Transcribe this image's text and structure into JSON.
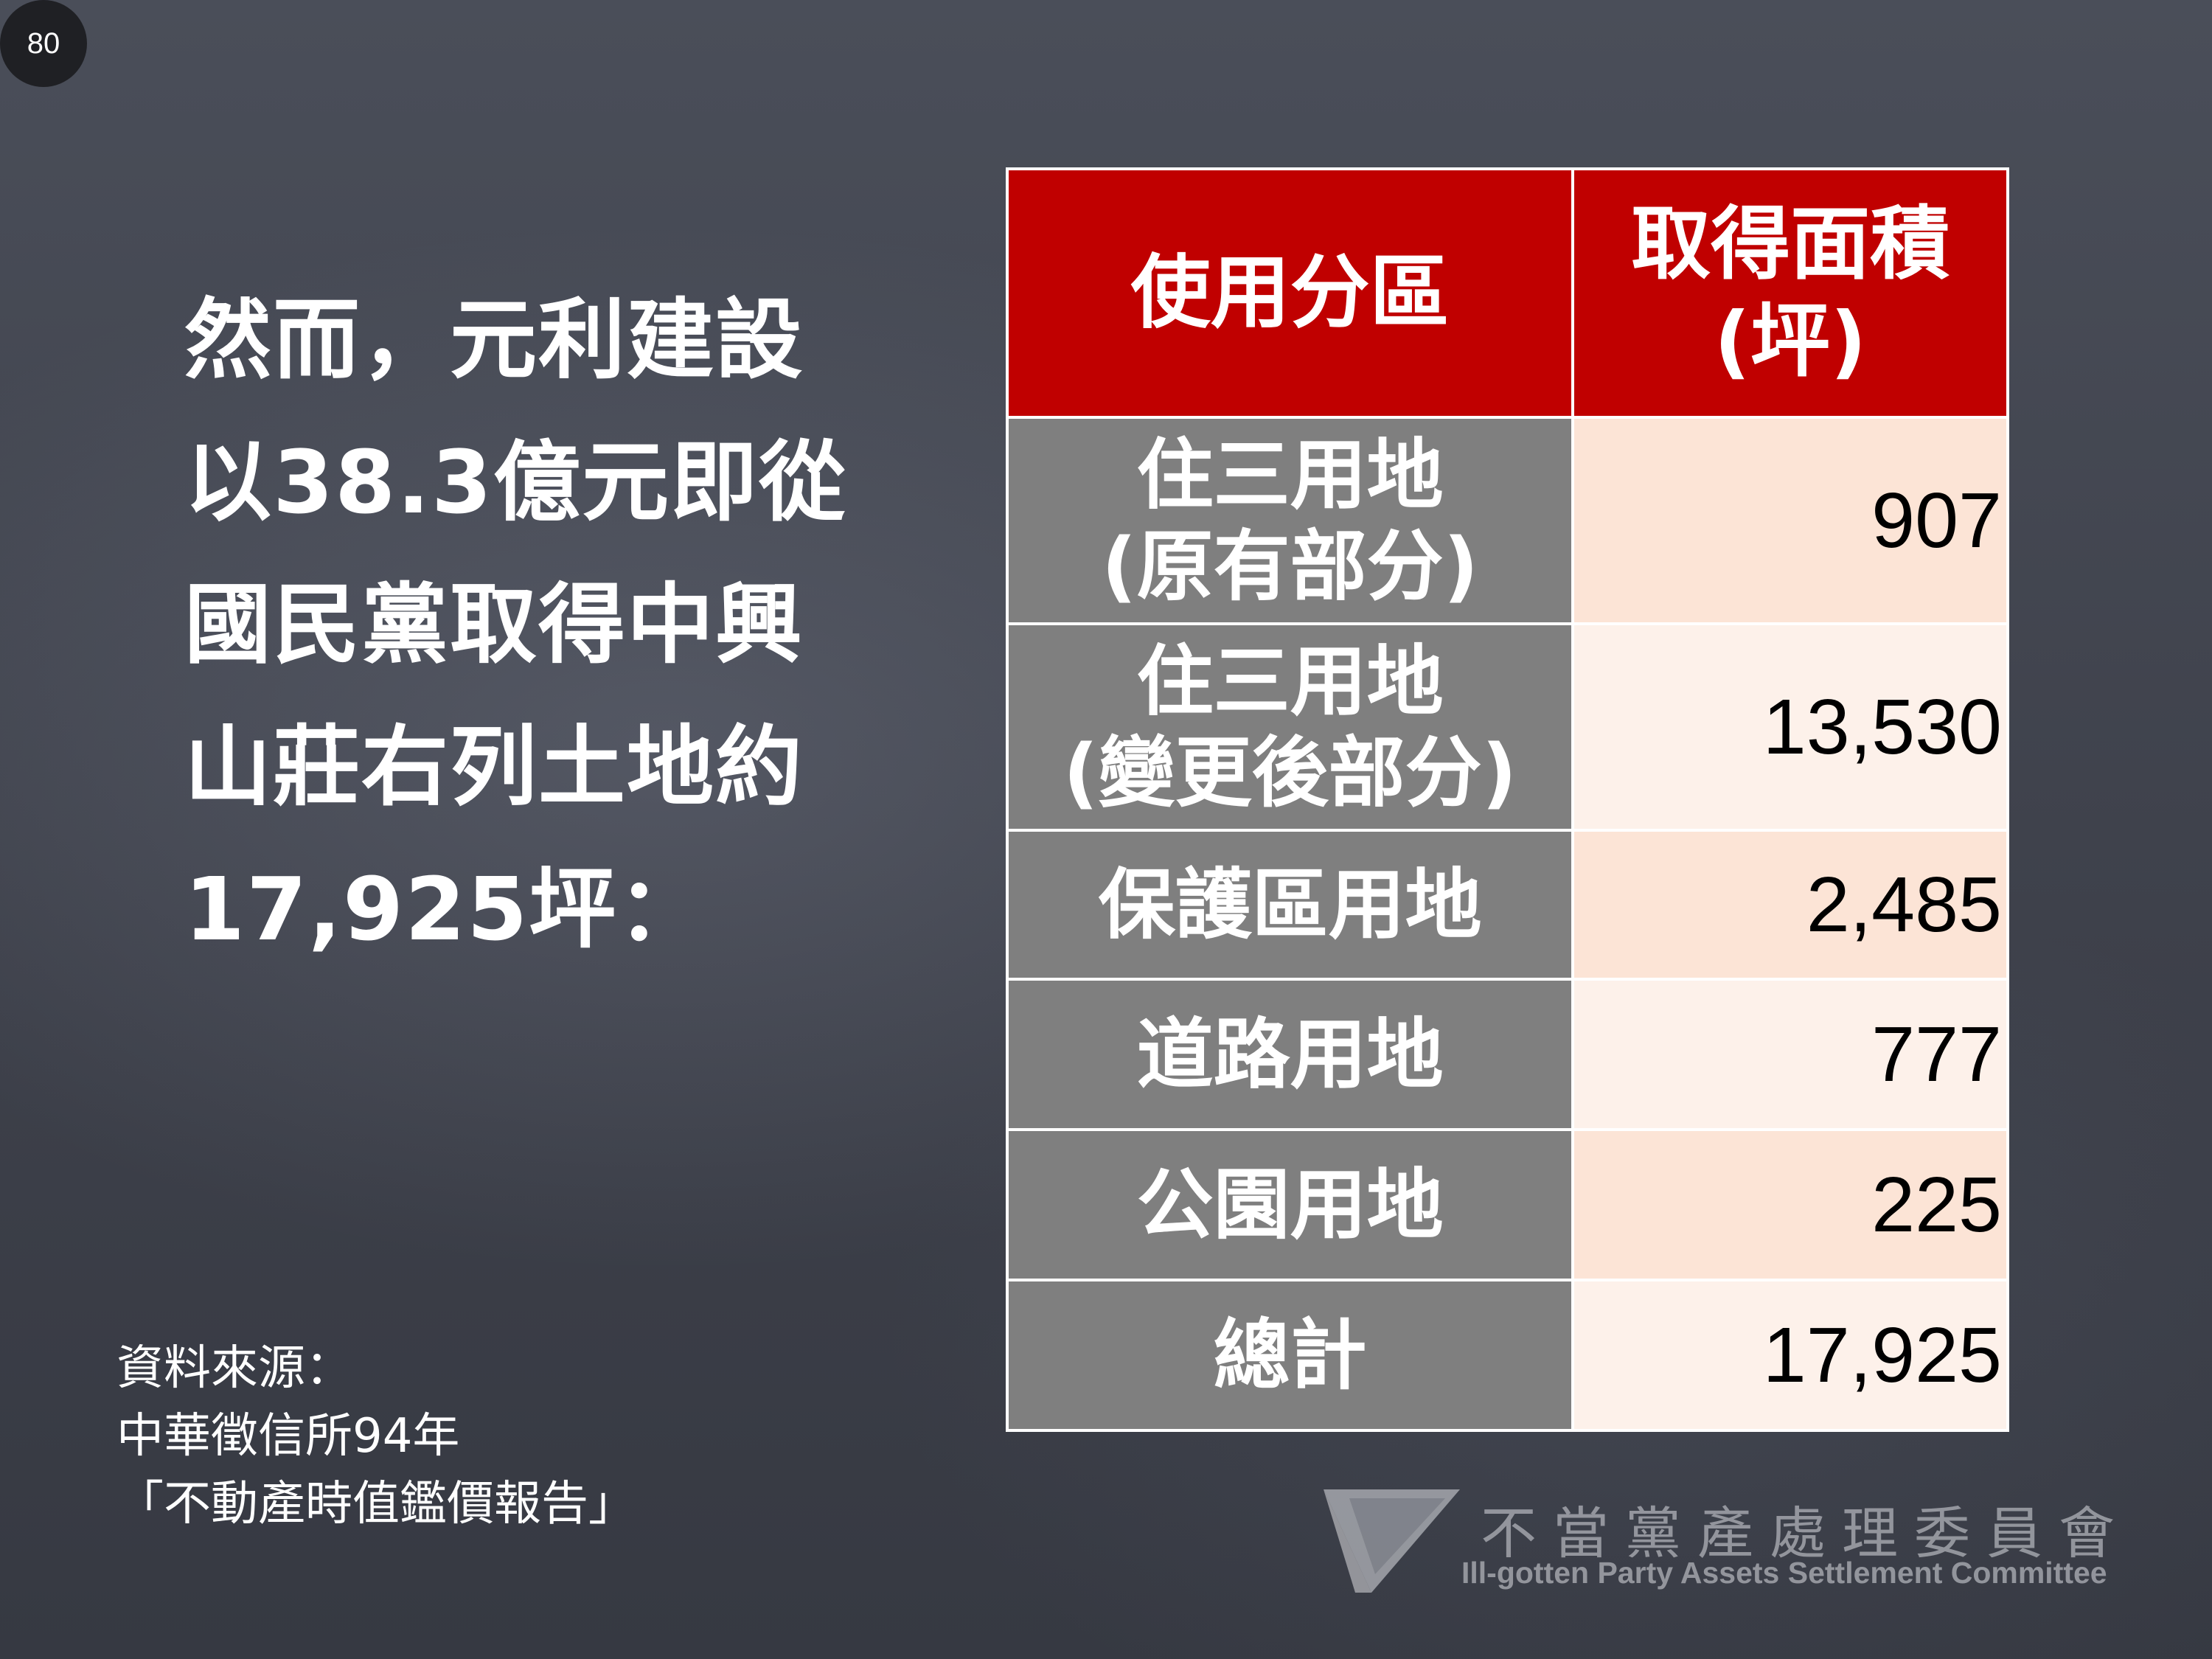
{
  "page_number": "80",
  "headline": {
    "lines": [
      "然而，元利建設",
      "以38.3億元即從",
      "國民黨取得中興",
      "山莊右列土地約",
      "17,925坪："
    ]
  },
  "table": {
    "headers": {
      "zone": "使用分區",
      "area_line1": "取得面積",
      "area_line2": "(坪)"
    },
    "rows": [
      {
        "zone_line1": "住三用地",
        "zone_line2": "(原有部分)",
        "area": "907"
      },
      {
        "zone_line1": "住三用地",
        "zone_line2": "(變更後部分)",
        "area": "13,530"
      },
      {
        "zone_line1": "保護區用地",
        "area": "2,485"
      },
      {
        "zone_line1": "道路用地",
        "area": "777"
      },
      {
        "zone_line1": "公園用地",
        "area": "225"
      },
      {
        "zone_line1": "總計",
        "area": "17,925"
      }
    ],
    "colors": {
      "header_bg": "#c00000",
      "zone_bg": "#7f7f7f",
      "area_bg_odd": "#fce4d6",
      "area_bg_even": "#fdf1ea"
    }
  },
  "source": {
    "label": "資料來源：",
    "line1": "中華徵信所94年",
    "line2": "「不動產時值鑑價報告」"
  },
  "logo": {
    "name_zh": "不當黨產處理委員會",
    "name_en": "Ill-gotten Party Assets Settlement Committee"
  }
}
